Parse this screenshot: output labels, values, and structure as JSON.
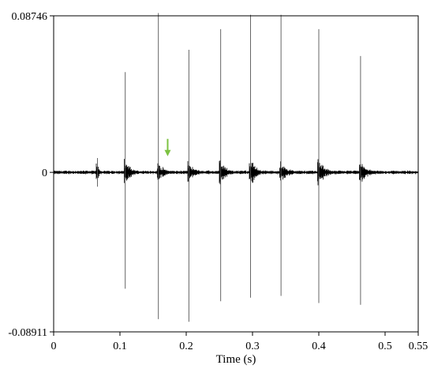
{
  "chart_data": {
    "type": "line",
    "title": "",
    "xlabel": "Time (s)",
    "ylabel": "",
    "xlim": [
      0,
      0.55
    ],
    "ylim": [
      -0.08911,
      0.08746
    ],
    "x_ticks": [
      0,
      0.1,
      0.2,
      0.3,
      0.4,
      0.5,
      0.55
    ],
    "x_tick_labels": [
      "0",
      "0.1",
      "0.2",
      "0.3",
      "0.4",
      "0.5",
      "0.55"
    ],
    "y_ticks": [
      -0.08911,
      0,
      0.08746
    ],
    "y_tick_labels": [
      "-0.08911",
      "0",
      "0.08746"
    ],
    "grid": false,
    "series": [
      {
        "kind": "waveform",
        "color": "#000000",
        "noise_amplitude": 0.0008,
        "pulses": [
          {
            "t": 0.066,
            "max": 0.008,
            "min": -0.008,
            "cluster_amp": 0.004,
            "dur": 0.008
          },
          {
            "t": 0.108,
            "max": 0.056,
            "min": -0.065,
            "cluster_amp": 0.006,
            "dur": 0.02
          },
          {
            "t": 0.158,
            "max": 0.089,
            "min": -0.082,
            "cluster_amp": 0.005,
            "dur": 0.02
          },
          {
            "t": 0.204,
            "max": 0.0685,
            "min": -0.0835,
            "cluster_amp": 0.005,
            "dur": 0.02
          },
          {
            "t": 0.252,
            "max": 0.08,
            "min": -0.072,
            "cluster_amp": 0.006,
            "dur": 0.02
          },
          {
            "t": 0.297,
            "max": 0.088,
            "min": -0.07,
            "cluster_amp": 0.007,
            "dur": 0.02
          },
          {
            "t": 0.343,
            "max": 0.088,
            "min": -0.069,
            "cluster_amp": 0.006,
            "dur": 0.02
          },
          {
            "t": 0.4,
            "max": 0.08,
            "min": -0.073,
            "cluster_amp": 0.007,
            "dur": 0.02
          },
          {
            "t": 0.463,
            "max": 0.065,
            "min": -0.074,
            "cluster_amp": 0.006,
            "dur": 0.02
          }
        ]
      }
    ],
    "annotations": [
      {
        "type": "arrow",
        "x": 0.172,
        "y": 0.009,
        "direction": "down",
        "color": "#7dc242"
      }
    ]
  }
}
